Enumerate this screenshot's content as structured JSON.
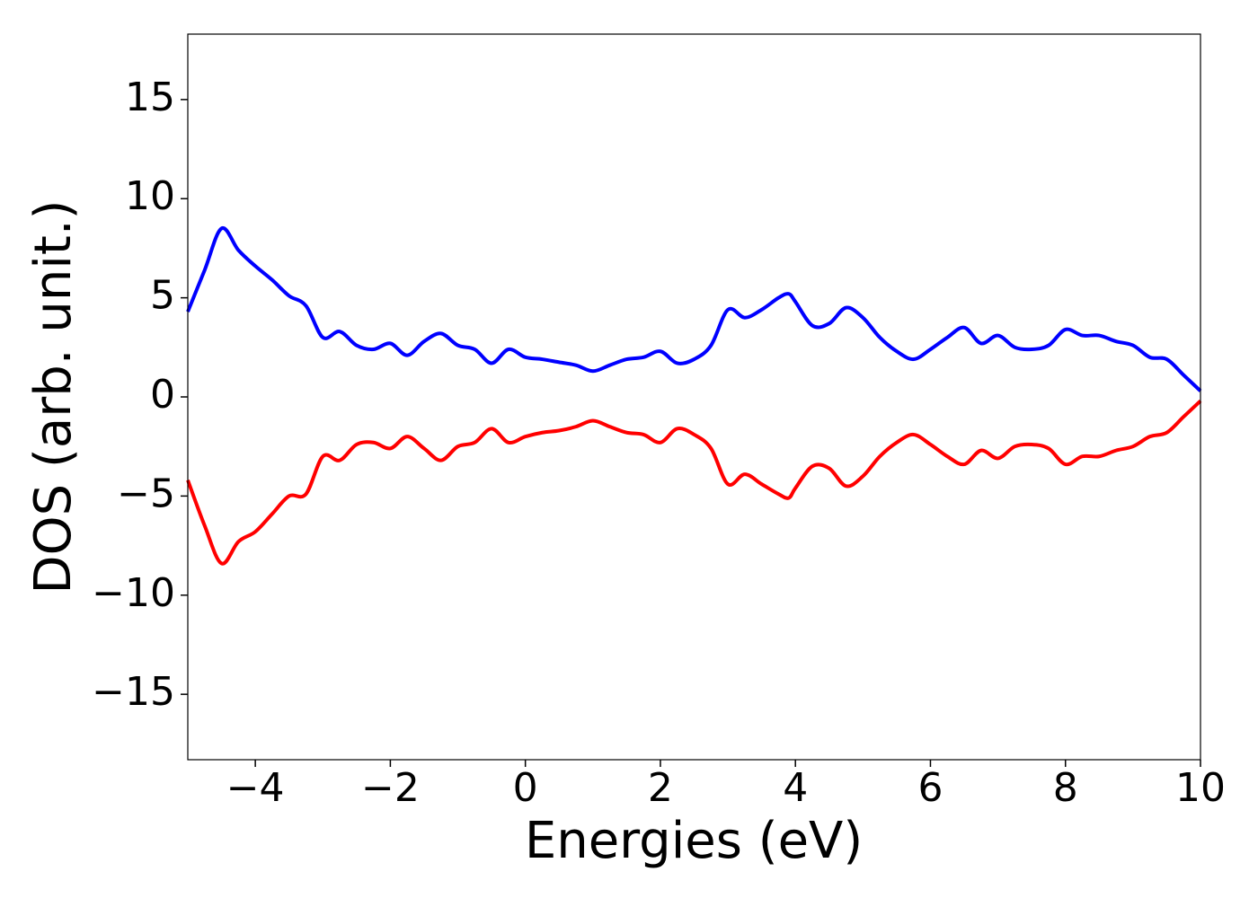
{
  "chart_data": {
    "type": "line",
    "xlabel": "Energies (eV)",
    "ylabel": "DOS (arb. unit.)",
    "x": [
      -5,
      -4.75,
      -4.5,
      -4.25,
      -4,
      -3.75,
      -3.5,
      -3.25,
      -3,
      -2.75,
      -2.5,
      -2.25,
      -2,
      -1.75,
      -1.5,
      -1.25,
      -1,
      -0.75,
      -0.5,
      -0.25,
      0,
      0.25,
      0.5,
      0.75,
      1,
      1.25,
      1.5,
      1.75,
      2,
      2.25,
      2.5,
      2.75,
      3,
      3.25,
      3.5,
      3.75,
      3.9,
      4,
      4.25,
      4.5,
      4.75,
      5,
      5.25,
      5.5,
      5.75,
      6,
      6.25,
      6.5,
      6.75,
      7,
      7.25,
      7.5,
      7.75,
      8,
      8.25,
      8.5,
      8.75,
      9,
      9.25,
      9.5,
      9.75,
      10
    ],
    "series": [
      {
        "color": "#0000ff",
        "values": [
          4.3,
          6.4,
          8.5,
          7.4,
          6.6,
          5.9,
          5.1,
          4.6,
          3.0,
          3.3,
          2.6,
          2.4,
          2.7,
          2.1,
          2.8,
          3.2,
          2.6,
          2.4,
          1.7,
          2.4,
          2.0,
          1.9,
          1.75,
          1.6,
          1.3,
          1.6,
          1.9,
          2.0,
          2.3,
          1.7,
          1.9,
          2.6,
          4.4,
          4.0,
          4.4,
          5.0,
          5.2,
          4.8,
          3.6,
          3.7,
          4.5,
          4.0,
          3.0,
          2.3,
          1.9,
          2.4,
          3.0,
          3.5,
          2.7,
          3.1,
          2.5,
          2.4,
          2.6,
          3.4,
          3.1,
          3.1,
          2.8,
          2.6,
          2.0,
          1.9,
          1.1,
          0.3
        ]
      },
      {
        "color": "#ff0000",
        "values": [
          -4.2,
          -6.5,
          -8.4,
          -7.3,
          -6.8,
          -5.9,
          -5.0,
          -4.9,
          -3.0,
          -3.2,
          -2.4,
          -2.3,
          -2.6,
          -2.0,
          -2.6,
          -3.2,
          -2.5,
          -2.3,
          -1.6,
          -2.3,
          -2.0,
          -1.8,
          -1.7,
          -1.5,
          -1.2,
          -1.5,
          -1.8,
          -1.9,
          -2.3,
          -1.6,
          -1.9,
          -2.6,
          -4.4,
          -3.9,
          -4.4,
          -4.9,
          -5.1,
          -4.6,
          -3.5,
          -3.6,
          -4.5,
          -4.0,
          -3.0,
          -2.3,
          -1.9,
          -2.4,
          -3.0,
          -3.4,
          -2.7,
          -3.1,
          -2.5,
          -2.4,
          -2.6,
          -3.4,
          -3.0,
          -3.0,
          -2.7,
          -2.5,
          -2.0,
          -1.8,
          -1.0,
          -0.2
        ]
      }
    ],
    "xlim": [
      -5,
      10
    ],
    "xticks": [
      {
        "value": -4,
        "label": "−4"
      },
      {
        "value": -2,
        "label": "−2"
      },
      0,
      2,
      4,
      6,
      8,
      10
    ],
    "ylim": [
      -18.3,
      18.3
    ],
    "yticks": [
      {
        "value": -15,
        "label": "−15"
      },
      {
        "value": -10,
        "label": "−10"
      },
      {
        "value": -5,
        "label": "−5"
      },
      0,
      5,
      10,
      15
    ]
  }
}
